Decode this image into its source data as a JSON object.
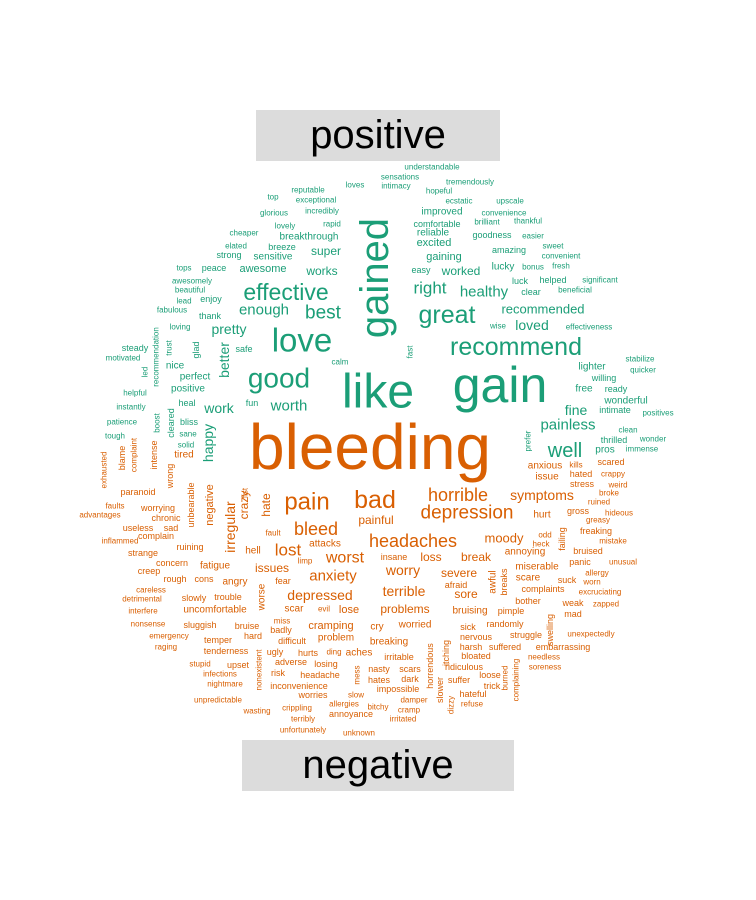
{
  "chart_data": {
    "type": "wordcloud",
    "groups": [
      "positive",
      "negative"
    ],
    "colors": {
      "positive": "#1b9e77",
      "negative": "#d95f02"
    },
    "words": [
      [
        "bleeding",
        "n",
        1.0
      ],
      [
        "gain",
        "p",
        0.78
      ],
      [
        "like",
        "p",
        0.74
      ],
      [
        "gained",
        "p",
        0.62
      ],
      [
        "love",
        "p",
        0.5
      ],
      [
        "good",
        "p",
        0.42
      ],
      [
        "recommend",
        "p",
        0.38
      ],
      [
        "great",
        "p",
        0.38
      ],
      [
        "effective",
        "p",
        0.34
      ],
      [
        "well",
        "p",
        0.3
      ],
      [
        "best",
        "p",
        0.27
      ],
      [
        "enough",
        "p",
        0.22
      ],
      [
        "right",
        "p",
        0.24
      ],
      [
        "pretty",
        "p",
        0.2
      ],
      [
        "worth",
        "p",
        0.22
      ],
      [
        "healthy",
        "p",
        0.21
      ],
      [
        "recommended",
        "p",
        0.18
      ],
      [
        "loved",
        "p",
        0.19
      ],
      [
        "painless",
        "p",
        0.22
      ],
      [
        "fine",
        "p",
        0.19
      ],
      [
        "work",
        "p",
        0.2
      ],
      [
        "happy",
        "p",
        0.2
      ],
      [
        "better",
        "p",
        0.19
      ],
      [
        "works",
        "p",
        0.17
      ],
      [
        "super",
        "p",
        0.17
      ],
      [
        "awesome",
        "p",
        0.15
      ],
      [
        "sensitive",
        "p",
        0.14
      ],
      [
        "excited",
        "p",
        0.15
      ],
      [
        "gaining",
        "p",
        0.15
      ],
      [
        "worked",
        "p",
        0.16
      ],
      [
        "improved",
        "p",
        0.13
      ],
      [
        "reliable",
        "p",
        0.13
      ],
      [
        "comfortable",
        "p",
        0.12
      ],
      [
        "goodness",
        "p",
        0.12
      ],
      [
        "amazing",
        "p",
        0.12
      ],
      [
        "lighter",
        "p",
        0.14
      ],
      [
        "perfect",
        "p",
        0.14
      ],
      [
        "positive",
        "p",
        0.14
      ],
      [
        "free",
        "p",
        0.14
      ],
      [
        "lucky",
        "p",
        0.13
      ],
      [
        "wonderful",
        "p",
        0.13
      ],
      [
        "nice",
        "p",
        0.13
      ],
      [
        "breakthrough",
        "p",
        0.13
      ],
      [
        "breeze",
        "p",
        0.12
      ],
      [
        "strong",
        "p",
        0.12
      ],
      [
        "peace",
        "p",
        0.12
      ],
      [
        "tops",
        "p",
        0.1
      ],
      [
        "elated",
        "p",
        0.1
      ],
      [
        "cheaper",
        "p",
        0.1
      ],
      [
        "glorious",
        "p",
        0.1
      ],
      [
        "lovely",
        "p",
        0.1
      ],
      [
        "incredibly",
        "p",
        0.1
      ],
      [
        "rapid",
        "p",
        0.1
      ],
      [
        "exceptional",
        "p",
        0.1
      ],
      [
        "reputable",
        "p",
        0.1
      ],
      [
        "top",
        "p",
        0.1
      ],
      [
        "loves",
        "p",
        0.1
      ],
      [
        "sensations",
        "p",
        0.1
      ],
      [
        "intimacy",
        "p",
        0.1
      ],
      [
        "hopeful",
        "p",
        0.1
      ],
      [
        "understandable",
        "p",
        0.1
      ],
      [
        "tremendously",
        "p",
        0.1
      ],
      [
        "ecstatic",
        "p",
        0.1
      ],
      [
        "upscale",
        "p",
        0.1
      ],
      [
        "convenience",
        "p",
        0.1
      ],
      [
        "brilliant",
        "p",
        0.1
      ],
      [
        "thankful",
        "p",
        0.1
      ],
      [
        "easier",
        "p",
        0.1
      ],
      [
        "sweet",
        "p",
        0.1
      ],
      [
        "convenient",
        "p",
        0.1
      ],
      [
        "bonus",
        "p",
        0.1
      ],
      [
        "fresh",
        "p",
        0.1
      ],
      [
        "luck",
        "p",
        0.11
      ],
      [
        "helped",
        "p",
        0.11
      ],
      [
        "beneficial",
        "p",
        0.1
      ],
      [
        "clear",
        "p",
        0.12
      ],
      [
        "significant",
        "p",
        0.1
      ],
      [
        "easy",
        "p",
        0.11
      ],
      [
        "effectiveness",
        "p",
        0.1
      ],
      [
        "wise",
        "p",
        0.1
      ],
      [
        "fast",
        "p",
        0.1
      ],
      [
        "calm",
        "p",
        0.1
      ],
      [
        "stabilize",
        "p",
        0.1
      ],
      [
        "quicker",
        "p",
        0.1
      ],
      [
        "willing",
        "p",
        0.11
      ],
      [
        "ready",
        "p",
        0.11
      ],
      [
        "intimate",
        "p",
        0.11
      ],
      [
        "positives",
        "p",
        0.1
      ],
      [
        "clean",
        "p",
        0.1
      ],
      [
        "wonder",
        "p",
        0.1
      ],
      [
        "thrilled",
        "p",
        0.11
      ],
      [
        "immense",
        "p",
        0.1
      ],
      [
        "pros",
        "p",
        0.13
      ],
      [
        "prefer",
        "p",
        0.1
      ],
      [
        "awesomely",
        "p",
        0.1
      ],
      [
        "beautiful",
        "p",
        0.1
      ],
      [
        "fabulous",
        "p",
        0.1
      ],
      [
        "lead",
        "p",
        0.1
      ],
      [
        "enjoy",
        "p",
        0.11
      ],
      [
        "thank",
        "p",
        0.12
      ],
      [
        "loving",
        "p",
        0.1
      ],
      [
        "steady",
        "p",
        0.11
      ],
      [
        "motivated",
        "p",
        0.1
      ],
      [
        "led",
        "p",
        0.1
      ],
      [
        "trust",
        "p",
        0.1
      ],
      [
        "recommendation",
        "p",
        0.1
      ],
      [
        "glad",
        "p",
        0.11
      ],
      [
        "safe",
        "p",
        0.11
      ],
      [
        "helpful",
        "p",
        0.1
      ],
      [
        "instantly",
        "p",
        0.1
      ],
      [
        "patience",
        "p",
        0.1
      ],
      [
        "tough",
        "p",
        0.1
      ],
      [
        "boost",
        "p",
        0.1
      ],
      [
        "cleared",
        "p",
        0.12
      ],
      [
        "heal",
        "p",
        0.11
      ],
      [
        "fun",
        "p",
        0.11
      ],
      [
        "bliss",
        "p",
        0.11
      ],
      [
        "sane",
        "p",
        0.1
      ],
      [
        "solid",
        "p",
        0.1
      ],
      [
        "pain",
        "n",
        0.35
      ],
      [
        "bad",
        "n",
        0.38
      ],
      [
        "horrible",
        "n",
        0.26
      ],
      [
        "depression",
        "n",
        0.28
      ],
      [
        "headaches",
        "n",
        0.26
      ],
      [
        "bleed",
        "n",
        0.26
      ],
      [
        "lost",
        "n",
        0.24
      ],
      [
        "worst",
        "n",
        0.23
      ],
      [
        "anxiety",
        "n",
        0.21
      ],
      [
        "symptoms",
        "n",
        0.19
      ],
      [
        "moody",
        "n",
        0.18
      ],
      [
        "worry",
        "n",
        0.19
      ],
      [
        "terrible",
        "n",
        0.19
      ],
      [
        "depressed",
        "n",
        0.2
      ],
      [
        "severe",
        "n",
        0.17
      ],
      [
        "sore",
        "n",
        0.16
      ],
      [
        "problems",
        "n",
        0.17
      ],
      [
        "irregular",
        "n",
        0.19
      ],
      [
        "hate",
        "n",
        0.17
      ],
      [
        "crazy",
        "n",
        0.17
      ],
      [
        "negative",
        "n",
        0.15
      ],
      [
        "painful",
        "n",
        0.16
      ],
      [
        "loss",
        "n",
        0.17
      ],
      [
        "break",
        "n",
        0.17
      ],
      [
        "attacks",
        "n",
        0.13
      ],
      [
        "issues",
        "n",
        0.16
      ],
      [
        "hell",
        "n",
        0.14
      ],
      [
        "fatigue",
        "n",
        0.14
      ],
      [
        "cry",
        "n",
        0.14
      ],
      [
        "worried",
        "n",
        0.14
      ],
      [
        "cramping",
        "n",
        0.15
      ],
      [
        "lose",
        "n",
        0.15
      ],
      [
        "scar",
        "n",
        0.14
      ],
      [
        "worse",
        "n",
        0.14
      ],
      [
        "tired",
        "n",
        0.14
      ],
      [
        "anxious",
        "n",
        0.13
      ],
      [
        "issue",
        "n",
        0.13
      ],
      [
        "hurt",
        "n",
        0.13
      ],
      [
        "annoying",
        "n",
        0.14
      ],
      [
        "awful",
        "n",
        0.14
      ],
      [
        "breaks",
        "n",
        0.12
      ],
      [
        "miserable",
        "n",
        0.13
      ],
      [
        "scare",
        "n",
        0.13
      ],
      [
        "complaints",
        "n",
        0.12
      ],
      [
        "bruising",
        "n",
        0.13
      ],
      [
        "pimple",
        "n",
        0.12
      ],
      [
        "sick",
        "n",
        0.12
      ],
      [
        "nervous",
        "n",
        0.12
      ],
      [
        "struggle",
        "n",
        0.12
      ],
      [
        "randomly",
        "n",
        0.12
      ],
      [
        "suffered",
        "n",
        0.11
      ],
      [
        "breaking",
        "n",
        0.13
      ],
      [
        "problem",
        "n",
        0.13
      ],
      [
        "aches",
        "n",
        0.13
      ],
      [
        "irritable",
        "n",
        0.12
      ],
      [
        "uncomfortable",
        "n",
        0.13
      ],
      [
        "trouble",
        "n",
        0.12
      ],
      [
        "slowly",
        "n",
        0.11
      ],
      [
        "angry",
        "n",
        0.13
      ],
      [
        "cons",
        "n",
        0.12
      ],
      [
        "rough",
        "n",
        0.11
      ],
      [
        "concern",
        "n",
        0.12
      ],
      [
        "ruining",
        "n",
        0.12
      ],
      [
        "strange",
        "n",
        0.11
      ],
      [
        "complain",
        "n",
        0.11
      ],
      [
        "sad",
        "n",
        0.12
      ],
      [
        "chronic",
        "n",
        0.11
      ],
      [
        "worrying",
        "n",
        0.12
      ],
      [
        "useless",
        "n",
        0.11
      ],
      [
        "inflammed",
        "n",
        0.1
      ],
      [
        "advantages",
        "n",
        0.1
      ],
      [
        "faults",
        "n",
        0.1
      ],
      [
        "paranoid",
        "n",
        0.11
      ],
      [
        "unbearable",
        "n",
        0.12
      ],
      [
        "wrong",
        "n",
        0.12
      ],
      [
        "intense",
        "n",
        0.11
      ],
      [
        "complaint",
        "n",
        0.1
      ],
      [
        "blame",
        "n",
        0.11
      ],
      [
        "exhausted",
        "n",
        0.1
      ],
      [
        "creep",
        "n",
        0.11
      ],
      [
        "careless",
        "n",
        0.1
      ],
      [
        "detrimental",
        "n",
        0.1
      ],
      [
        "interfere",
        "n",
        0.1
      ],
      [
        "nonsense",
        "n",
        0.1
      ],
      [
        "emergency",
        "n",
        0.1
      ],
      [
        "raging",
        "n",
        0.1
      ],
      [
        "stupid",
        "n",
        0.1
      ],
      [
        "infections",
        "n",
        0.1
      ],
      [
        "nightmare",
        "n",
        0.1
      ],
      [
        "unpredictable",
        "n",
        0.1
      ],
      [
        "sluggish",
        "n",
        0.11
      ],
      [
        "temper",
        "n",
        0.11
      ],
      [
        "tenderness",
        "n",
        0.11
      ],
      [
        "upset",
        "n",
        0.11
      ],
      [
        "bruise",
        "n",
        0.11
      ],
      [
        "hard",
        "n",
        0.11
      ],
      [
        "miss",
        "n",
        0.1
      ],
      [
        "badly",
        "n",
        0.11
      ],
      [
        "difficult",
        "n",
        0.11
      ],
      [
        "ugly",
        "n",
        0.11
      ],
      [
        "risk",
        "n",
        0.11
      ],
      [
        "adverse",
        "n",
        0.11
      ],
      [
        "headache",
        "n",
        0.11
      ],
      [
        "inconvenience",
        "n",
        0.11
      ],
      [
        "wasting",
        "n",
        0.1
      ],
      [
        "worries",
        "n",
        0.11
      ],
      [
        "crippling",
        "n",
        0.1
      ],
      [
        "terribly",
        "n",
        0.1
      ],
      [
        "unfortunately",
        "n",
        0.1
      ],
      [
        "annoyance",
        "n",
        0.11
      ],
      [
        "unknown",
        "n",
        0.1
      ],
      [
        "hurts",
        "n",
        0.11
      ],
      [
        "ding",
        "n",
        0.1
      ],
      [
        "losing",
        "n",
        0.11
      ],
      [
        "slow",
        "n",
        0.1
      ],
      [
        "allergies",
        "n",
        0.1
      ],
      [
        "mess",
        "n",
        0.1
      ],
      [
        "nasty",
        "n",
        0.11
      ],
      [
        "hates",
        "n",
        0.11
      ],
      [
        "bitchy",
        "n",
        0.1
      ],
      [
        "scars",
        "n",
        0.11
      ],
      [
        "dark",
        "n",
        0.11
      ],
      [
        "impossible",
        "n",
        0.11
      ],
      [
        "damper",
        "n",
        0.1
      ],
      [
        "cramp",
        "n",
        0.1
      ],
      [
        "irritated",
        "n",
        0.1
      ],
      [
        "horrendous",
        "n",
        0.11
      ],
      [
        "nonexistent",
        "n",
        0.1
      ],
      [
        "itching",
        "n",
        0.12
      ],
      [
        "slower",
        "n",
        0.11
      ],
      [
        "dizzy",
        "n",
        0.1
      ],
      [
        "ridiculous",
        "n",
        0.11
      ],
      [
        "suffer",
        "n",
        0.11
      ],
      [
        "hateful",
        "n",
        0.11
      ],
      [
        "refuse",
        "n",
        0.1
      ],
      [
        "harsh",
        "n",
        0.11
      ],
      [
        "bloated",
        "n",
        0.11
      ],
      [
        "loose",
        "n",
        0.11
      ],
      [
        "trick",
        "n",
        0.11
      ],
      [
        "burned",
        "n",
        0.1
      ],
      [
        "complaining",
        "n",
        0.1
      ],
      [
        "embarrassing",
        "n",
        0.11
      ],
      [
        "needless",
        "n",
        0.1
      ],
      [
        "soreness",
        "n",
        0.1
      ],
      [
        "swelling",
        "n",
        0.11
      ],
      [
        "mad",
        "n",
        0.11
      ],
      [
        "unexpectedly",
        "n",
        0.1
      ],
      [
        "weak",
        "n",
        0.11
      ],
      [
        "zapped",
        "n",
        0.1
      ],
      [
        "bother",
        "n",
        0.11
      ],
      [
        "suck",
        "n",
        0.11
      ],
      [
        "worn",
        "n",
        0.1
      ],
      [
        "excruciating",
        "n",
        0.1
      ],
      [
        "allergy",
        "n",
        0.1
      ],
      [
        "freaking",
        "n",
        0.11
      ],
      [
        "unusual",
        "n",
        0.1
      ],
      [
        "panic",
        "n",
        0.11
      ],
      [
        "bruised",
        "n",
        0.11
      ],
      [
        "mistake",
        "n",
        0.1
      ],
      [
        "odd",
        "n",
        0.1
      ],
      [
        "heck",
        "n",
        0.1
      ],
      [
        "failing",
        "n",
        0.11
      ],
      [
        "greasy",
        "n",
        0.1
      ],
      [
        "hideous",
        "n",
        0.1
      ],
      [
        "gross",
        "n",
        0.11
      ],
      [
        "ruined",
        "n",
        0.1
      ],
      [
        "broke",
        "n",
        0.1
      ],
      [
        "weird",
        "n",
        0.1
      ],
      [
        "stress",
        "n",
        0.11
      ],
      [
        "crappy",
        "n",
        0.1
      ],
      [
        "hated",
        "n",
        0.11
      ],
      [
        "kills",
        "n",
        0.1
      ],
      [
        "scared",
        "n",
        0.11
      ],
      [
        "fault",
        "n",
        0.1
      ],
      [
        "limp",
        "n",
        0.1
      ],
      [
        "fear",
        "n",
        0.11
      ],
      [
        "evil",
        "n",
        0.1
      ],
      [
        "insane",
        "n",
        0.11
      ],
      [
        "afraid",
        "n",
        0.11
      ],
      [
        "fist",
        "n",
        0.1
      ]
    ]
  },
  "banners": {
    "positive": "positive",
    "negative": "negative"
  }
}
